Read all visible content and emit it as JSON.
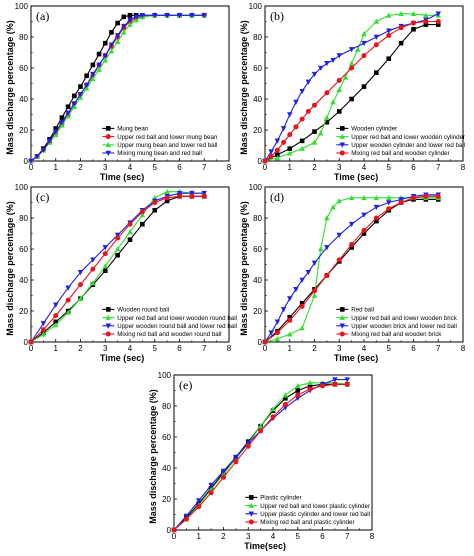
{
  "chart_data": [
    {
      "type": "line",
      "panel_label": "(a)",
      "xlabel": "Time (sec)",
      "ylabel": "Mass discharge percentage (%)",
      "xlim": [
        0,
        8
      ],
      "ylim": [
        0,
        100
      ],
      "xticks": [
        "0",
        "1",
        "2",
        "3",
        "4",
        "5",
        "6",
        "7",
        "8"
      ],
      "yticks": [
        "0",
        "20",
        "40",
        "60",
        "80",
        "100"
      ],
      "legend_position": "bottom-right",
      "series": [
        {
          "name": "Mung bean",
          "color": "#000000",
          "marker": "square",
          "x": [
            0,
            0.25,
            0.5,
            0.75,
            1,
            1.25,
            1.5,
            1.75,
            2,
            2.25,
            2.5,
            2.75,
            3,
            3.25,
            3.5,
            3.75,
            4,
            4.25,
            4.5,
            5,
            5.5,
            6,
            6.5,
            7
          ],
          "y": [
            0,
            3,
            8,
            14,
            21,
            28,
            35,
            42,
            48,
            55,
            62,
            69,
            76,
            83,
            89,
            93,
            94,
            94,
            94,
            94,
            94,
            94,
            94,
            94
          ]
        },
        {
          "name": "Upper red ball and lower mung bean",
          "color": "#e8141b",
          "marker": "circle",
          "x": [
            0,
            0.25,
            0.5,
            0.75,
            1,
            1.25,
            1.5,
            1.75,
            2,
            2.25,
            2.5,
            2.75,
            3,
            3.25,
            3.5,
            3.75,
            4,
            4.25,
            4.5,
            5,
            5.5,
            6,
            6.5,
            7
          ],
          "y": [
            0,
            3,
            7,
            12,
            18,
            24,
            30,
            37,
            43,
            49,
            55,
            62,
            68,
            74,
            80,
            86,
            90,
            92,
            93,
            94,
            94,
            94,
            94,
            94
          ]
        },
        {
          "name": "Upper mung bean and lower red ball",
          "color": "#33dd33",
          "marker": "triangle-up",
          "x": [
            0,
            0.25,
            0.5,
            0.75,
            1,
            1.25,
            1.5,
            1.75,
            2,
            2.25,
            2.5,
            2.75,
            3,
            3.25,
            3.5,
            3.75,
            4,
            4.25,
            4.5,
            5,
            5.5,
            6,
            6.5,
            7
          ],
          "y": [
            0,
            3,
            7,
            12,
            17,
            23,
            29,
            35,
            41,
            47,
            53,
            59,
            65,
            71,
            77,
            83,
            88,
            91,
            93,
            94,
            94,
            94,
            94,
            94
          ]
        },
        {
          "name": "Mixing mung bean and red ball",
          "color": "#1f1fe6",
          "marker": "triangle-down",
          "x": [
            0,
            0.25,
            0.5,
            0.75,
            1,
            1.25,
            1.5,
            1.75,
            2,
            2.25,
            2.5,
            2.75,
            3,
            3.25,
            3.5,
            3.75,
            4,
            4.25,
            4.5,
            5,
            5.5,
            6,
            6.5,
            7
          ],
          "y": [
            0,
            3,
            7,
            13,
            19,
            25,
            31,
            37,
            43,
            49,
            56,
            62,
            68,
            75,
            81,
            87,
            91,
            93,
            94,
            94,
            94,
            94,
            94,
            94
          ]
        }
      ]
    },
    {
      "type": "line",
      "panel_label": "(b)",
      "xlabel": "Time (sec)",
      "ylabel": "Mass discharge percentage (%)",
      "xlim": [
        0,
        8
      ],
      "ylim": [
        0,
        100
      ],
      "xticks": [
        "0",
        "1",
        "2",
        "3",
        "4",
        "5",
        "6",
        "7",
        "8"
      ],
      "yticks": [
        "0",
        "20",
        "40",
        "60",
        "80",
        "100"
      ],
      "legend_position": "bottom-right",
      "series": [
        {
          "name": "Wooden cylinder",
          "color": "#000000",
          "marker": "square",
          "x": [
            0,
            0.5,
            1,
            1.5,
            2,
            2.5,
            3,
            3.5,
            4,
            4.5,
            5,
            5.5,
            6,
            6.5,
            7
          ],
          "y": [
            0,
            4,
            8,
            13,
            19,
            25,
            32,
            40,
            48,
            57,
            66,
            76,
            85,
            88,
            88
          ]
        },
        {
          "name": "Upper red ball and lower wooden cylinder",
          "color": "#33dd33",
          "marker": "triangle-up",
          "x": [
            0,
            0.5,
            1,
            1.5,
            2,
            2.25,
            2.5,
            2.75,
            3,
            3.25,
            3.5,
            3.75,
            4,
            4.5,
            5,
            5.5,
            6,
            6.5,
            7
          ],
          "y": [
            0,
            2,
            5,
            8,
            12,
            18,
            28,
            38,
            46,
            54,
            63,
            72,
            82,
            90,
            94,
            95,
            95,
            94,
            94
          ]
        },
        {
          "name": "Upper wooden cylinder and lower red ball",
          "color": "#1f1fe6",
          "marker": "triangle-down",
          "x": [
            0,
            0.25,
            0.5,
            0.75,
            1,
            1.25,
            1.5,
            1.75,
            2,
            2.25,
            2.5,
            2.75,
            3,
            3.5,
            4,
            4.5,
            5,
            5.5,
            6,
            6.5,
            7
          ],
          "y": [
            0,
            6,
            13,
            21,
            30,
            38,
            45,
            51,
            56,
            60,
            63,
            65,
            68,
            72,
            76,
            80,
            84,
            87,
            89,
            91,
            95
          ]
        },
        {
          "name": "Mixing red ball and wooden cylinder",
          "color": "#e8141b",
          "marker": "circle",
          "x": [
            0,
            0.25,
            0.5,
            0.75,
            1,
            1.25,
            1.5,
            1.75,
            2,
            2.5,
            3,
            3.5,
            4,
            4.5,
            5,
            5.5,
            6,
            6.5,
            7
          ],
          "y": [
            0,
            3,
            7,
            12,
            17,
            22,
            27,
            32,
            36,
            44,
            52,
            60,
            68,
            75,
            81,
            86,
            89,
            90,
            90
          ]
        }
      ]
    },
    {
      "type": "line",
      "panel_label": "(c)",
      "xlabel": "Time (sec)",
      "ylabel": "Mass discharge percentage (%)",
      "xlim": [
        0,
        8
      ],
      "ylim": [
        0,
        100
      ],
      "xticks": [
        "0",
        "1",
        "2",
        "3",
        "4",
        "5",
        "6",
        "7",
        "8"
      ],
      "yticks": [
        "0",
        "20",
        "40",
        "60",
        "80",
        "100"
      ],
      "legend_position": "bottom-right",
      "series": [
        {
          "name": "Wooden round ball",
          "color": "#000000",
          "marker": "square",
          "x": [
            0,
            0.5,
            1,
            1.5,
            2,
            2.5,
            3,
            3.5,
            4,
            4.5,
            5,
            5.5,
            6,
            6.5,
            7
          ],
          "y": [
            0,
            6,
            13,
            20,
            28,
            37,
            46,
            56,
            66,
            76,
            85,
            91,
            94,
            94,
            94
          ]
        },
        {
          "name": "Upper red ball and lower wooden round ball",
          "color": "#33dd33",
          "marker": "triangle-up",
          "x": [
            0,
            0.5,
            1,
            1.5,
            2,
            2.5,
            3,
            3.5,
            4,
            4.5,
            5,
            5.5,
            6,
            6.5,
            7
          ],
          "y": [
            0,
            5,
            11,
            19,
            28,
            38,
            49,
            60,
            71,
            82,
            93,
            97,
            97,
            96,
            96
          ]
        },
        {
          "name": "Upper wooden round ball and lower red ball",
          "color": "#1f1fe6",
          "marker": "triangle-down",
          "x": [
            0,
            0.5,
            1,
            1.5,
            2,
            2.5,
            3,
            3.5,
            4,
            4.5,
            5,
            5.5,
            6,
            6.5,
            7
          ],
          "y": [
            0,
            12,
            24,
            35,
            45,
            53,
            61,
            69,
            77,
            85,
            91,
            94,
            96,
            96,
            96
          ]
        },
        {
          "name": "Mixing red ball and wooden round ball",
          "color": "#e8141b",
          "marker": "circle",
          "x": [
            0,
            0.5,
            1,
            1.5,
            2,
            2.5,
            3,
            3.5,
            4,
            4.5,
            5,
            5.5,
            6,
            6.5,
            7
          ],
          "y": [
            0,
            8,
            17,
            27,
            37,
            47,
            57,
            67,
            76,
            84,
            90,
            93,
            94,
            94,
            94
          ]
        }
      ]
    },
    {
      "type": "line",
      "panel_label": "(d)",
      "xlabel": "Time (sec)",
      "ylabel": "Mass discharge percentage (%)",
      "xlim": [
        0,
        8
      ],
      "ylim": [
        0,
        100
      ],
      "xticks": [
        "0",
        "1",
        "2",
        "3",
        "4",
        "5",
        "6",
        "7",
        "8"
      ],
      "yticks": [
        "0",
        "20",
        "40",
        "60",
        "80",
        "100"
      ],
      "legend_position": "bottom-right",
      "series": [
        {
          "name": "Red ball",
          "color": "#000000",
          "marker": "square",
          "x": [
            0,
            0.5,
            1,
            1.5,
            2,
            2.5,
            3,
            3.5,
            4,
            4.5,
            5,
            5.5,
            6,
            6.5,
            7
          ],
          "y": [
            0,
            7,
            16,
            25,
            34,
            43,
            52,
            61,
            70,
            78,
            85,
            90,
            92,
            92,
            92
          ]
        },
        {
          "name": "Upper red ball and lower wooden brick",
          "color": "#33dd33",
          "marker": "triangle-up",
          "x": [
            0,
            0.5,
            1,
            1.5,
            2,
            2.25,
            2.5,
            2.75,
            3,
            3.5,
            4,
            4.5,
            5,
            5.5,
            6,
            6.5,
            7
          ],
          "y": [
            0,
            2,
            5,
            9,
            30,
            60,
            80,
            87,
            91,
            93,
            93,
            93,
            93,
            93,
            93,
            93,
            93
          ]
        },
        {
          "name": "Upper wooden brick and lower red ball",
          "color": "#1f1fe6",
          "marker": "triangle-down",
          "x": [
            0,
            0.25,
            0.5,
            0.75,
            1,
            1.25,
            1.5,
            1.75,
            2,
            2.5,
            3,
            3.5,
            4,
            4.5,
            5,
            5.5,
            6,
            6.5,
            7
          ],
          "y": [
            0,
            6,
            13,
            21,
            28,
            34,
            40,
            45,
            51,
            61,
            69,
            76,
            82,
            87,
            90,
            92,
            94,
            95,
            95
          ]
        },
        {
          "name": "Mixing red ball and wooden brick",
          "color": "#e8141b",
          "marker": "circle",
          "x": [
            0,
            0.5,
            1,
            1.5,
            2,
            2.5,
            3,
            3.5,
            4,
            4.5,
            5,
            5.5,
            6,
            6.5,
            7
          ],
          "y": [
            0,
            6,
            14,
            23,
            33,
            43,
            53,
            63,
            72,
            80,
            86,
            90,
            93,
            94,
            94
          ]
        }
      ]
    },
    {
      "type": "line",
      "panel_label": "(e)",
      "xlabel": "Time(sec)",
      "ylabel": "Mass discharge percentage (%)",
      "xlim": [
        0,
        8
      ],
      "ylim": [
        0,
        100
      ],
      "xticks": [
        "0",
        "1",
        "2",
        "3",
        "4",
        "5",
        "6",
        "7",
        "8"
      ],
      "yticks": [
        "0",
        "20",
        "40",
        "60",
        "80",
        "100"
      ],
      "legend_position": "bottom-right",
      "series": [
        {
          "name": "Plastic cylinder",
          "color": "#000000",
          "marker": "square",
          "x": [
            0,
            0.5,
            1,
            1.5,
            2,
            2.5,
            3,
            3.5,
            4,
            4.5,
            5,
            5.5,
            6,
            6.5,
            7
          ],
          "y": [
            0,
            8,
            17,
            27,
            37,
            47,
            57,
            67,
            77,
            85,
            90,
            93,
            94,
            94,
            94
          ]
        },
        {
          "name": "Upper red ball and lower plastic cylinder",
          "color": "#33dd33",
          "marker": "triangle-up",
          "x": [
            0,
            0.5,
            1,
            1.5,
            2,
            2.5,
            3,
            3.5,
            4,
            4.5,
            5,
            5.5,
            6,
            6.5,
            7
          ],
          "y": [
            0,
            7,
            16,
            26,
            36,
            46,
            56,
            67,
            78,
            87,
            93,
            95,
            95,
            95,
            94
          ]
        },
        {
          "name": "Upper plastic cylinder and lower red ball",
          "color": "#1f1fe6",
          "marker": "triangle-down",
          "x": [
            0,
            0.5,
            1,
            1.5,
            2,
            2.5,
            3,
            3.5,
            4,
            4.5,
            5,
            5.5,
            6,
            6.5,
            7
          ],
          "y": [
            0,
            9,
            19,
            29,
            38,
            47,
            56,
            64,
            72,
            79,
            85,
            90,
            94,
            97,
            97
          ]
        },
        {
          "name": "Mixing red ball and plastic cylinder",
          "color": "#e8141b",
          "marker": "circle",
          "x": [
            0,
            0.5,
            1,
            1.5,
            2,
            2.5,
            3,
            3.5,
            4,
            4.5,
            5,
            5.5,
            6,
            6.5,
            7
          ],
          "y": [
            0,
            7,
            15,
            24,
            34,
            44,
            54,
            64,
            73,
            81,
            87,
            91,
            93,
            94,
            94
          ]
        }
      ]
    }
  ]
}
